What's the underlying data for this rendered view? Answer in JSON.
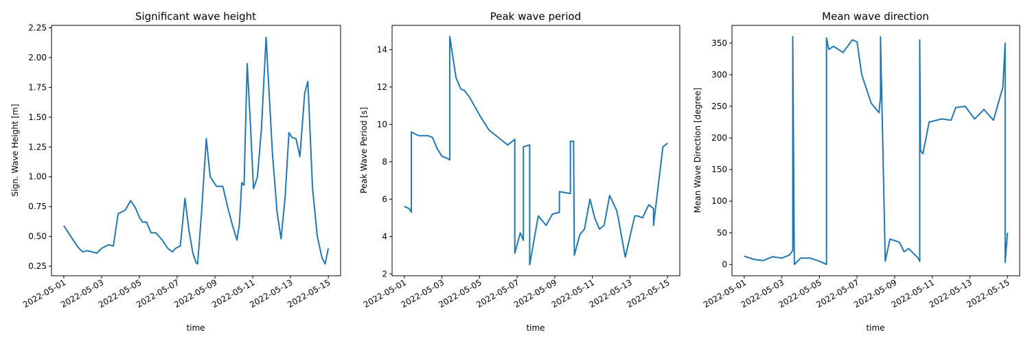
{
  "chart_data": [
    {
      "type": "line",
      "title": "Significant wave height",
      "xlabel": "time",
      "ylabel": "Sign. Wave Height [m]",
      "color": "#1f77b4",
      "xlim": [
        "2022-05-01",
        "2022-05-15"
      ],
      "ylim": [
        0.17,
        2.27
      ],
      "x_ticks": [
        "2022-05-01",
        "2022-05-03",
        "2022-05-05",
        "2022-05-07",
        "2022-05-09",
        "2022-05-11",
        "2022-05-13",
        "2022-05-15"
      ],
      "y_ticks": [
        "0.25",
        "0.50",
        "0.75",
        "1.00",
        "1.25",
        "1.50",
        "1.75",
        "2.00",
        "2.25"
      ],
      "series": [
        {
          "x": [
            "2022-05-01T00:00",
            "2022-05-01T06:00",
            "2022-05-01T12:00",
            "2022-05-01T18:00",
            "2022-05-02T00:00",
            "2022-05-02T06:00",
            "2022-05-02T12:00",
            "2022-05-02T18:00",
            "2022-05-03T00:00",
            "2022-05-03T06:00",
            "2022-05-03T09:00",
            "2022-05-03T15:00",
            "2022-05-03T21:00",
            "2022-05-04T06:00",
            "2022-05-04T13:00",
            "2022-05-04T19:00",
            "2022-05-05T00:00",
            "2022-05-05T04:00",
            "2022-05-05T09:00",
            "2022-05-05T15:00",
            "2022-05-05T21:00",
            "2022-05-06T05:00",
            "2022-05-06T12:00",
            "2022-05-06T18:00",
            "2022-05-06T22:00",
            "2022-05-07T04:00",
            "2022-05-07T10:00",
            "2022-05-07T15:00",
            "2022-05-07T20:00",
            "2022-05-08T00:00",
            "2022-05-08T02:00",
            "2022-05-08T07:00",
            "2022-05-08T13:00",
            "2022-05-08T18:00",
            "2022-05-09T02:00",
            "2022-05-09T10:00",
            "2022-05-09T16:00",
            "2022-05-09T22:00",
            "2022-05-10T04:00",
            "2022-05-10T07:00",
            "2022-05-10T10:00",
            "2022-05-10T13:00",
            "2022-05-10T17:00",
            "2022-05-10T21:00",
            "2022-05-11T01:00",
            "2022-05-11T06:00",
            "2022-05-11T11:00",
            "2022-05-11T17:00",
            "2022-05-12T01:00",
            "2022-05-12T07:00",
            "2022-05-12T12:00",
            "2022-05-12T17:00",
            "2022-05-12T22:00",
            "2022-05-13T02:00",
            "2022-05-13T07:00",
            "2022-05-13T12:00",
            "2022-05-13T18:00",
            "2022-05-13T22:00",
            "2022-05-14T04:00",
            "2022-05-14T10:00",
            "2022-05-14T16:00",
            "2022-05-14T20:00",
            "2022-05-15T00:00"
          ],
          "y": [
            0.59,
            0.53,
            0.47,
            0.41,
            0.37,
            0.38,
            0.37,
            0.36,
            0.4,
            0.42,
            0.43,
            0.42,
            0.69,
            0.72,
            0.8,
            0.74,
            0.66,
            0.62,
            0.62,
            0.53,
            0.53,
            0.47,
            0.4,
            0.37,
            0.4,
            0.42,
            0.82,
            0.55,
            0.36,
            0.28,
            0.27,
            0.7,
            1.32,
            1.0,
            0.92,
            0.92,
            0.75,
            0.6,
            0.47,
            0.6,
            0.95,
            0.93,
            1.95,
            1.45,
            0.9,
            1.0,
            1.4,
            2.17,
            1.2,
            0.7,
            0.48,
            0.82,
            1.37,
            1.33,
            1.32,
            1.17,
            1.7,
            1.8,
            0.9,
            0.5,
            0.32,
            0.27,
            0.4
          ]
        }
      ]
    },
    {
      "type": "line",
      "title": "Peak wave period",
      "xlabel": "time",
      "ylabel": "Peak Wave Period [s]",
      "color": "#1f77b4",
      "xlim": [
        "2022-05-01",
        "2022-05-15"
      ],
      "ylim": [
        1.9,
        15.3
      ],
      "x_ticks": [
        "2022-05-01",
        "2022-05-03",
        "2022-05-05",
        "2022-05-07",
        "2022-05-09",
        "2022-05-11",
        "2022-05-13",
        "2022-05-15"
      ],
      "y_ticks": [
        "2",
        "4",
        "6",
        "8",
        "10",
        "12",
        "14"
      ],
      "series": [
        {
          "x": [
            "2022-05-01T00:00",
            "2022-05-01T06:00",
            "2022-05-01T09:00",
            "2022-05-01T09:00",
            "2022-05-01T18:00",
            "2022-05-02T06:00",
            "2022-05-02T12:00",
            "2022-05-02T18:00",
            "2022-05-03T00:00",
            "2022-05-03T06:00",
            "2022-05-03T10:00",
            "2022-05-03T10:00",
            "2022-05-03T18:00",
            "2022-05-04T00:00",
            "2022-05-04T05:00",
            "2022-05-04T12:00",
            "2022-05-05T00:00",
            "2022-05-05T12:00",
            "2022-05-06T00:00",
            "2022-05-06T12:00",
            "2022-05-06T21:00",
            "2022-05-06T21:00",
            "2022-05-07T04:00",
            "2022-05-07T08:00",
            "2022-05-07T08:00",
            "2022-05-07T16:00",
            "2022-05-07T16:00",
            "2022-05-08T03:00",
            "2022-05-08T13:00",
            "2022-05-08T21:00",
            "2022-05-09T06:00",
            "2022-05-09T06:00",
            "2022-05-09T20:00",
            "2022-05-09T20:00",
            "2022-05-10T00:00",
            "2022-05-10T01:00",
            "2022-05-10T08:00",
            "2022-05-10T14:00",
            "2022-05-10T21:00",
            "2022-05-11T03:00",
            "2022-05-11T09:00",
            "2022-05-11T15:00",
            "2022-05-11T22:00",
            "2022-05-12T07:00",
            "2022-05-12T09:00",
            "2022-05-12T18:00",
            "2022-05-13T06:00",
            "2022-05-13T10:00",
            "2022-05-13T16:00",
            "2022-05-14T00:00",
            "2022-05-14T06:00",
            "2022-05-14T06:00",
            "2022-05-14T18:00",
            "2022-05-15T00:00"
          ],
          "y": [
            5.6,
            5.5,
            5.3,
            9.6,
            9.4,
            9.4,
            9.3,
            8.7,
            8.3,
            8.2,
            8.1,
            14.7,
            12.5,
            11.9,
            11.8,
            11.4,
            10.5,
            9.7,
            9.3,
            8.9,
            9.2,
            3.1,
            4.2,
            3.8,
            8.8,
            8.9,
            2.5,
            5.1,
            4.6,
            5.2,
            5.3,
            6.4,
            6.3,
            9.1,
            9.1,
            3.0,
            4.1,
            4.4,
            6.0,
            5.0,
            4.4,
            4.6,
            6.2,
            5.4,
            5.0,
            2.9,
            5.1,
            5.1,
            5.0,
            5.7,
            5.5,
            4.6,
            8.8,
            9.0
          ]
        }
      ]
    },
    {
      "type": "line",
      "title": "Mean wave direction",
      "xlabel": "time",
      "ylabel": "Mean Wave Direction [degree]",
      "color": "#1f77b4",
      "xlim": [
        "2022-05-01",
        "2022-05-15"
      ],
      "ylim": [
        -18,
        378
      ],
      "x_ticks": [
        "2022-05-01",
        "2022-05-03",
        "2022-05-05",
        "2022-05-07",
        "2022-05-09",
        "2022-05-11",
        "2022-05-13",
        "2022-05-15"
      ],
      "y_ticks": [
        "0",
        "50",
        "100",
        "150",
        "200",
        "250",
        "300",
        "350"
      ],
      "series": [
        {
          "x": [
            "2022-05-01T00:00",
            "2022-05-01T12:00",
            "2022-05-02T00:00",
            "2022-05-02T12:00",
            "2022-05-03T00:00",
            "2022-05-03T10:00",
            "2022-05-03T14:00",
            "2022-05-03T14:00",
            "2022-05-03T16:00",
            "2022-05-03T16:00",
            "2022-05-04T00:00",
            "2022-05-04T12:00",
            "2022-05-05T00:00",
            "2022-05-05T09:00",
            "2022-05-05T09:00",
            "2022-05-05T12:00",
            "2022-05-05T18:00",
            "2022-05-06T06:00",
            "2022-05-06T18:00",
            "2022-05-07T00:00",
            "2022-05-07T06:00",
            "2022-05-07T18:00",
            "2022-05-08T04:00",
            "2022-05-08T06:00",
            "2022-05-08T06:00",
            "2022-05-08T12:00",
            "2022-05-08T18:00",
            "2022-05-09T06:00",
            "2022-05-09T12:00",
            "2022-05-09T18:00",
            "2022-05-10T06:00",
            "2022-05-10T08:00",
            "2022-05-10T08:00",
            "2022-05-10T09:00",
            "2022-05-10T12:00",
            "2022-05-10T20:00",
            "2022-05-11T12:00",
            "2022-05-12T00:00",
            "2022-05-12T06:00",
            "2022-05-12T18:00",
            "2022-05-13T06:00",
            "2022-05-13T18:00",
            "2022-05-14T06:00",
            "2022-05-14T18:00",
            "2022-05-14T21:00",
            "2022-05-14T21:00",
            "2022-05-15T00:00"
          ],
          "y": [
            13,
            8,
            6,
            12,
            10,
            15,
            22,
            360,
            2,
            0,
            10,
            10,
            5,
            0,
            358,
            340,
            345,
            335,
            355,
            352,
            300,
            255,
            240,
            265,
            360,
            5,
            40,
            35,
            20,
            25,
            10,
            5,
            355,
            180,
            175,
            225,
            230,
            228,
            248,
            250,
            230,
            245,
            228,
            280,
            350,
            3,
            50
          ]
        }
      ]
    }
  ]
}
